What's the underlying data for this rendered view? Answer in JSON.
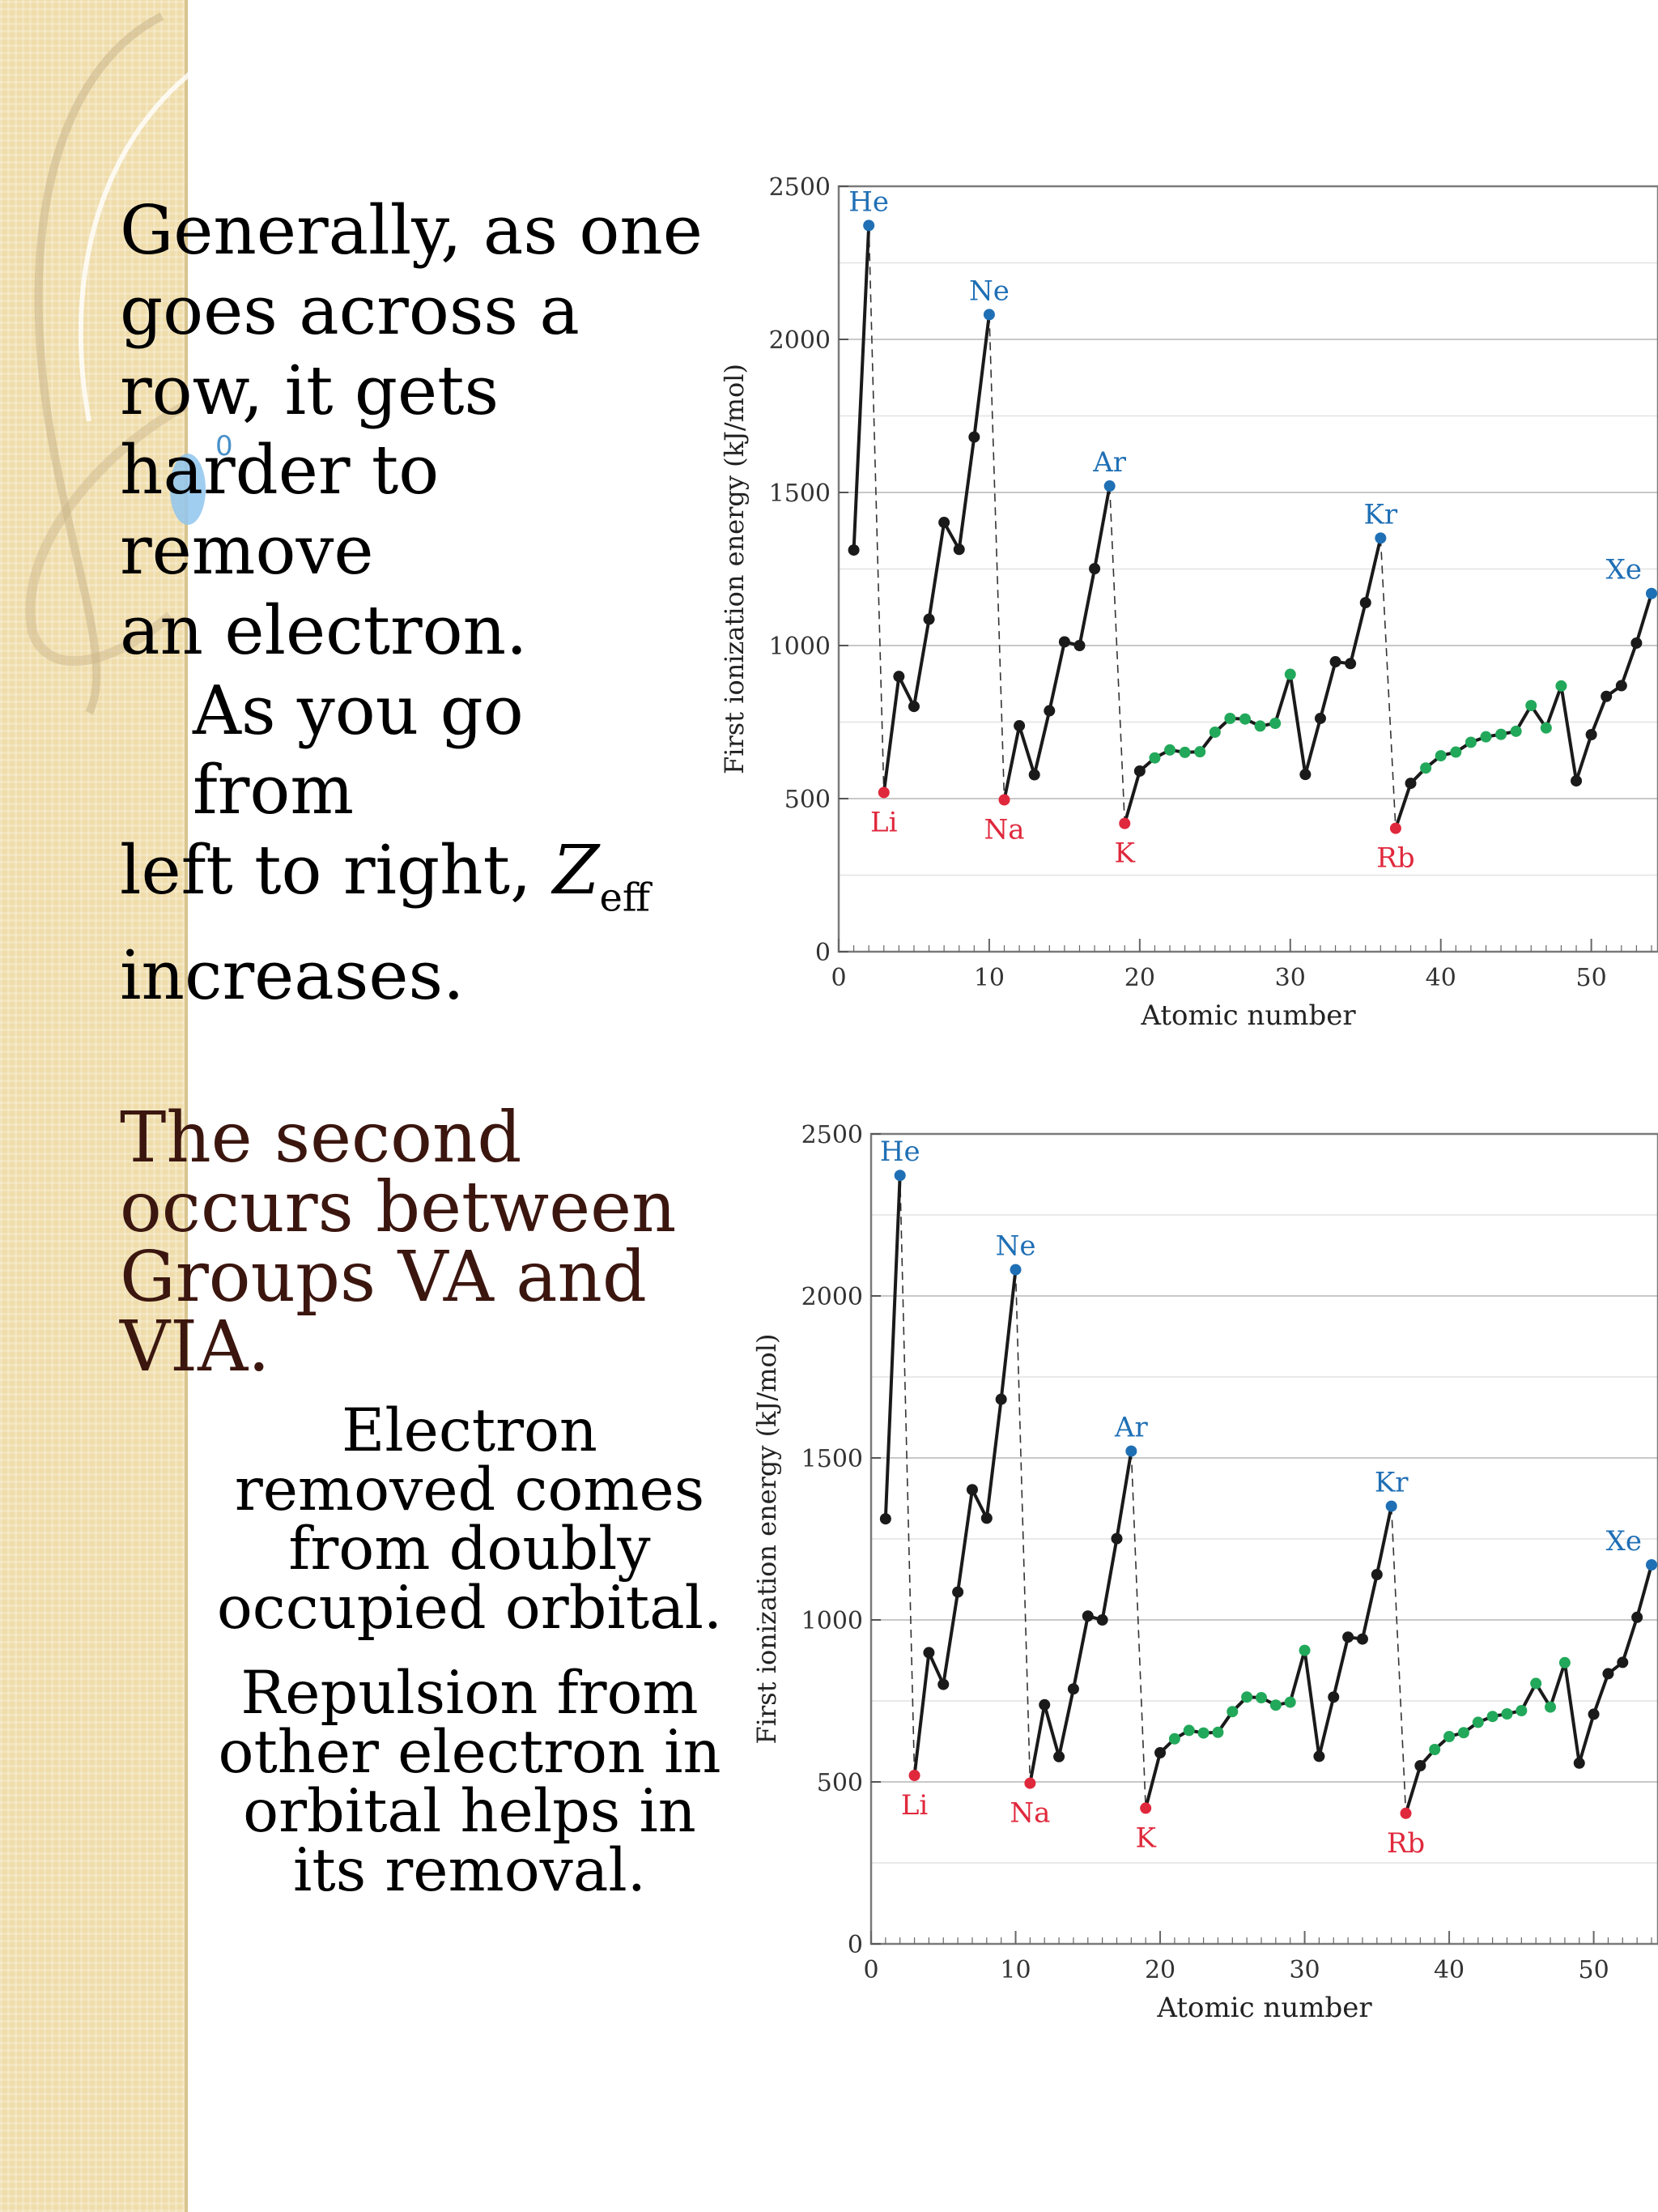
{
  "texts": {
    "para1_line1": "Generally, as one",
    "para1_line2": "goes across a",
    "para1_line3": "row, it gets",
    "para1_line4": "harder to remove",
    "para1_line5": "an electron.",
    "para1_line6": "As you go from",
    "para1_line7a": "left to right, ",
    "para1_z": "Z",
    "para1_zsub": "eff",
    "para1_line8": "increases.",
    "heading2": "The second occurs between Groups VA and VIA.",
    "sub2_p1": "Electron removed comes from doubly occupied orbital.",
    "sub2_p2": "Repulsion from other electron in orbital helps in its removal.",
    "swirl_label": "0"
  },
  "colors": {
    "noble": "#1f6fb5",
    "alkali": "#e0283c",
    "transition": "#22a85a",
    "other": "#1a1a1a",
    "heading2": "#3b160f"
  },
  "chart_data": [
    {
      "type": "line",
      "title": "",
      "xlabel": "Atomic number",
      "ylabel": "First ionization energy (kJ/mol)",
      "xlim": [
        0,
        54
      ],
      "ylim": [
        0,
        2500
      ],
      "xticks": [
        0,
        10,
        20,
        30,
        40,
        50
      ],
      "yticks": [
        0,
        500,
        1000,
        1500,
        2000,
        2500
      ],
      "x": [
        1,
        2,
        3,
        4,
        5,
        6,
        7,
        8,
        9,
        10,
        11,
        12,
        13,
        14,
        15,
        16,
        17,
        18,
        19,
        20,
        21,
        22,
        23,
        24,
        25,
        26,
        27,
        28,
        29,
        30,
        31,
        32,
        33,
        34,
        35,
        36,
        37,
        38,
        39,
        40,
        41,
        42,
        43,
        44,
        45,
        46,
        47,
        48,
        49,
        50,
        51,
        52,
        53,
        54
      ],
      "values": [
        1312,
        2372,
        520,
        899,
        801,
        1086,
        1402,
        1314,
        1681,
        2081,
        496,
        738,
        578,
        787,
        1012,
        1000,
        1251,
        1521,
        419,
        590,
        633,
        659,
        651,
        653,
        717,
        762,
        760,
        737,
        746,
        906,
        579,
        762,
        947,
        941,
        1140,
        1351,
        403,
        550,
        600,
        640,
        652,
        684,
        702,
        710,
        720,
        804,
        731,
        868,
        558,
        709,
        834,
        869,
        1008,
        1170
      ],
      "categories_per_point": [
        "other",
        "noble",
        "alkali",
        "other",
        "other",
        "other",
        "other",
        "other",
        "other",
        "noble",
        "alkali",
        "other",
        "other",
        "other",
        "other",
        "other",
        "other",
        "noble",
        "alkali",
        "other",
        "transition",
        "transition",
        "transition",
        "transition",
        "transition",
        "transition",
        "transition",
        "transition",
        "transition",
        "transition",
        "other",
        "other",
        "other",
        "other",
        "other",
        "noble",
        "alkali",
        "other",
        "transition",
        "transition",
        "transition",
        "transition",
        "transition",
        "transition",
        "transition",
        "transition",
        "transition",
        "transition",
        "other",
        "other",
        "other",
        "other",
        "other",
        "noble"
      ],
      "noble_gases": [
        {
          "label": "He",
          "x": 2
        },
        {
          "label": "Ne",
          "x": 10
        },
        {
          "label": "Ar",
          "x": 18
        },
        {
          "label": "Kr",
          "x": 36
        },
        {
          "label": "Xe",
          "x": 54
        }
      ],
      "alkali_metals": [
        {
          "label": "Li",
          "x": 3
        },
        {
          "label": "Na",
          "x": 11
        },
        {
          "label": "K",
          "x": 19
        },
        {
          "label": "Rb",
          "x": 37
        }
      ],
      "grid": true
    },
    {
      "type": "line",
      "title": "",
      "xlabel": "Atomic number",
      "ylabel": "First ionization energy (kJ/mol)",
      "xlim": [
        0,
        54
      ],
      "ylim": [
        0,
        2500
      ],
      "xticks": [
        0,
        10,
        20,
        30,
        40,
        50
      ],
      "yticks": [
        0,
        500,
        1000,
        1500,
        2000,
        2500
      ],
      "x": [
        1,
        2,
        3,
        4,
        5,
        6,
        7,
        8,
        9,
        10,
        11,
        12,
        13,
        14,
        15,
        16,
        17,
        18,
        19,
        20,
        21,
        22,
        23,
        24,
        25,
        26,
        27,
        28,
        29,
        30,
        31,
        32,
        33,
        34,
        35,
        36,
        37,
        38,
        39,
        40,
        41,
        42,
        43,
        44,
        45,
        46,
        47,
        48,
        49,
        50,
        51,
        52,
        53,
        54
      ],
      "values": [
        1312,
        2372,
        520,
        899,
        801,
        1086,
        1402,
        1314,
        1681,
        2081,
        496,
        738,
        578,
        787,
        1012,
        1000,
        1251,
        1521,
        419,
        590,
        633,
        659,
        651,
        653,
        717,
        762,
        760,
        737,
        746,
        906,
        579,
        762,
        947,
        941,
        1140,
        1351,
        403,
        550,
        600,
        640,
        652,
        684,
        702,
        710,
        720,
        804,
        731,
        868,
        558,
        709,
        834,
        869,
        1008,
        1170
      ],
      "categories_per_point": [
        "other",
        "noble",
        "alkali",
        "other",
        "other",
        "other",
        "other",
        "other",
        "other",
        "noble",
        "alkali",
        "other",
        "other",
        "other",
        "other",
        "other",
        "other",
        "noble",
        "alkali",
        "other",
        "transition",
        "transition",
        "transition",
        "transition",
        "transition",
        "transition",
        "transition",
        "transition",
        "transition",
        "transition",
        "other",
        "other",
        "other",
        "other",
        "other",
        "noble",
        "alkali",
        "other",
        "transition",
        "transition",
        "transition",
        "transition",
        "transition",
        "transition",
        "transition",
        "transition",
        "transition",
        "transition",
        "other",
        "other",
        "other",
        "other",
        "other",
        "noble"
      ],
      "noble_gases": [
        {
          "label": "He",
          "x": 2
        },
        {
          "label": "Ne",
          "x": 10
        },
        {
          "label": "Ar",
          "x": 18
        },
        {
          "label": "Kr",
          "x": 36
        },
        {
          "label": "Xe",
          "x": 54
        }
      ],
      "alkali_metals": [
        {
          "label": "Li",
          "x": 3
        },
        {
          "label": "Na",
          "x": 11
        },
        {
          "label": "K",
          "x": 19
        },
        {
          "label": "Rb",
          "x": 37
        }
      ],
      "grid": true
    }
  ]
}
